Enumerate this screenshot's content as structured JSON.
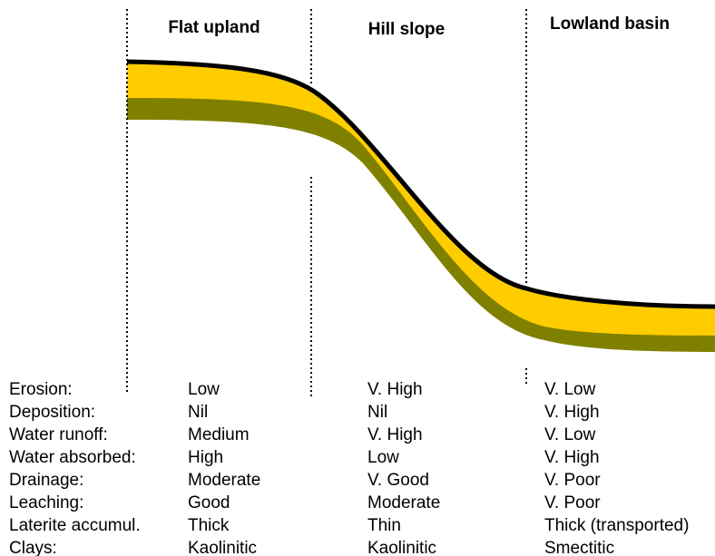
{
  "zones": [
    "Flat upland",
    "Hill slope",
    "Lowland basin"
  ],
  "rows": [
    {
      "label": "Erosion:",
      "values": [
        "Low",
        "V. High",
        "V. Low"
      ]
    },
    {
      "label": "Deposition:",
      "values": [
        "Nil",
        "Nil",
        "V. High"
      ]
    },
    {
      "label": "Water runoff:",
      "values": [
        "Medium",
        "V. High",
        "V. Low"
      ]
    },
    {
      "label": "Water absorbed:",
      "values": [
        "High",
        "Low",
        "V. High"
      ]
    },
    {
      "label": "Drainage:",
      "values": [
        "Moderate",
        "V. Good",
        "V. Poor"
      ]
    },
    {
      "label": "Leaching:",
      "values": [
        "Good",
        "Moderate",
        "V. Poor"
      ]
    },
    {
      "label": "Laterite accumul.",
      "values": [
        "Thick",
        "Thin",
        "Thick (transported)"
      ]
    },
    {
      "label": "Clays:",
      "values": [
        "Kaolinitic",
        "Kaolinitic",
        "Smectitic"
      ]
    }
  ]
}
